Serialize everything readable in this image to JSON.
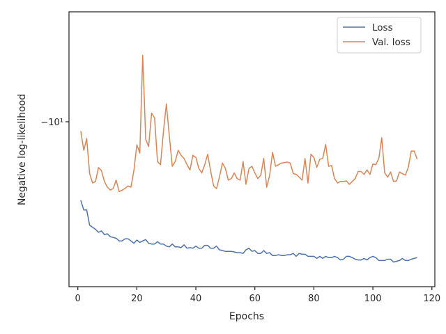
{
  "chart_data": {
    "type": "line",
    "xlabel": "Epochs",
    "ylabel": "Negative log-likelihood",
    "xlim": [
      -3,
      121
    ],
    "xticks": [
      0,
      20,
      40,
      60,
      80,
      100,
      120
    ],
    "ylim": [
      -9.37,
      -10.42
    ],
    "yticks": [
      {
        "value": -10,
        "label": "−10¹"
      }
    ],
    "yscale": "symlog",
    "grid": false,
    "legend_position": "top-right",
    "series": [
      {
        "name": "Loss",
        "color": "#4c72b0",
        "x": [
          1,
          2,
          3,
          4,
          5,
          6,
          7,
          8,
          9,
          10,
          11,
          12,
          13,
          14,
          15,
          16,
          17,
          18,
          19,
          20,
          21,
          22,
          23,
          24,
          25,
          26,
          27,
          28,
          29,
          30,
          31,
          32,
          33,
          34,
          35,
          36,
          37,
          38,
          39,
          40,
          41,
          42,
          43,
          44,
          45,
          46,
          47,
          48,
          49,
          50,
          51,
          52,
          53,
          54,
          55,
          56,
          57,
          58,
          59,
          60,
          61,
          62,
          63,
          64,
          65,
          66,
          67,
          68,
          69,
          70,
          71,
          72,
          73,
          74,
          75,
          76,
          77,
          78,
          79,
          80,
          81,
          82,
          83,
          84,
          85,
          86,
          87,
          88,
          89,
          90,
          91,
          92,
          93,
          94,
          95,
          96,
          97,
          98,
          99,
          100,
          101,
          102,
          103,
          104,
          105,
          106,
          107,
          108,
          109,
          110,
          111,
          112,
          113,
          114,
          115
        ],
        "values": [
          -9.7,
          -9.663,
          -9.663,
          -9.605,
          -9.597,
          -9.589,
          -9.578,
          -9.583,
          -9.569,
          -9.572,
          -9.561,
          -9.558,
          -9.555,
          -9.545,
          -9.545,
          -9.553,
          -9.553,
          -9.545,
          -9.536,
          -9.548,
          -9.539,
          -9.545,
          -9.55,
          -9.536,
          -9.533,
          -9.533,
          -9.542,
          -9.533,
          -9.533,
          -9.525,
          -9.522,
          -9.533,
          -9.522,
          -9.522,
          -9.519,
          -9.53,
          -9.517,
          -9.519,
          -9.517,
          -9.525,
          -9.517,
          -9.517,
          -9.528,
          -9.528,
          -9.517,
          -9.517,
          -9.525,
          -9.511,
          -9.508,
          -9.505,
          -9.505,
          -9.505,
          -9.503,
          -9.5,
          -9.5,
          -9.497,
          -9.511,
          -9.517,
          -9.505,
          -9.508,
          -9.497,
          -9.497,
          -9.508,
          -9.497,
          -9.5,
          -9.489,
          -9.489,
          -9.492,
          -9.489,
          -9.489,
          -9.492,
          -9.492,
          -9.497,
          -9.486,
          -9.497,
          -9.494,
          -9.494,
          -9.486,
          -9.486,
          -9.486,
          -9.478,
          -9.486,
          -9.478,
          -9.486,
          -9.481,
          -9.481,
          -9.486,
          -9.481,
          -9.472,
          -9.475,
          -9.486,
          -9.486,
          -9.481,
          -9.475,
          -9.472,
          -9.472,
          -9.478,
          -9.472,
          -9.481,
          -9.486,
          -9.481,
          -9.47,
          -9.47,
          -9.47,
          -9.475,
          -9.475,
          -9.464,
          -9.467,
          -9.47,
          -9.478,
          -9.47,
          -9.47,
          -9.475,
          -9.478,
          -9.481
        ]
      },
      {
        "name": "Val. loss",
        "color": "#dd8452",
        "x": [
          1,
          2,
          3,
          4,
          5,
          6,
          7,
          8,
          9,
          10,
          11,
          12,
          13,
          14,
          15,
          16,
          17,
          18,
          19,
          20,
          21,
          22,
          23,
          24,
          25,
          26,
          27,
          28,
          29,
          30,
          31,
          32,
          33,
          34,
          35,
          36,
          37,
          38,
          39,
          40,
          41,
          42,
          43,
          44,
          45,
          46,
          47,
          48,
          49,
          50,
          51,
          52,
          53,
          54,
          55,
          56,
          57,
          58,
          59,
          60,
          61,
          62,
          63,
          64,
          65,
          66,
          67,
          68,
          69,
          70,
          71,
          72,
          73,
          74,
          75,
          76,
          77,
          78,
          79,
          80,
          81,
          82,
          83,
          84,
          85,
          86,
          87,
          88,
          89,
          90,
          91,
          92,
          93,
          94,
          95,
          96,
          97,
          98,
          99,
          100,
          101,
          102,
          103,
          104,
          105,
          106,
          107,
          108,
          109,
          110,
          111,
          112,
          113,
          114,
          115
        ],
        "values": [
          -9.964,
          -9.891,
          -9.936,
          -9.802,
          -9.766,
          -9.772,
          -9.825,
          -9.813,
          -9.772,
          -9.75,
          -9.739,
          -9.745,
          -9.777,
          -9.733,
          -9.739,
          -9.745,
          -9.755,
          -9.75,
          -9.813,
          -9.912,
          -9.88,
          -10.254,
          -9.933,
          -9.905,
          -10.033,
          -10.015,
          -9.848,
          -9.836,
          -9.961,
          -10.068,
          -9.945,
          -9.83,
          -9.848,
          -9.891,
          -9.872,
          -9.86,
          -9.836,
          -9.816,
          -9.872,
          -9.864,
          -9.822,
          -9.805,
          -9.836,
          -9.876,
          -9.813,
          -9.755,
          -9.745,
          -9.789,
          -9.842,
          -9.822,
          -9.777,
          -9.783,
          -9.805,
          -9.783,
          -9.777,
          -9.848,
          -9.761,
          -9.822,
          -9.83,
          -9.805,
          -9.783,
          -9.796,
          -9.86,
          -9.75,
          -9.795,
          -9.883,
          -9.83,
          -9.836,
          -9.842,
          -9.844,
          -9.846,
          -9.842,
          -9.802,
          -9.799,
          -9.789,
          -9.777,
          -9.86,
          -9.766,
          -9.876,
          -9.864,
          -9.826,
          -9.857,
          -9.86,
          -9.913,
          -9.83,
          -9.833,
          -9.783,
          -9.766,
          -9.772,
          -9.772,
          -9.774,
          -9.761,
          -9.772,
          -9.783,
          -9.81,
          -9.81,
          -9.799,
          -9.816,
          -9.799,
          -9.839,
          -9.836,
          -9.86,
          -9.939,
          -9.805,
          -9.789,
          -9.808,
          -9.772,
          -9.774,
          -9.808,
          -9.802,
          -9.796,
          -9.826,
          -9.888,
          -9.888,
          -9.857
        ]
      }
    ]
  }
}
